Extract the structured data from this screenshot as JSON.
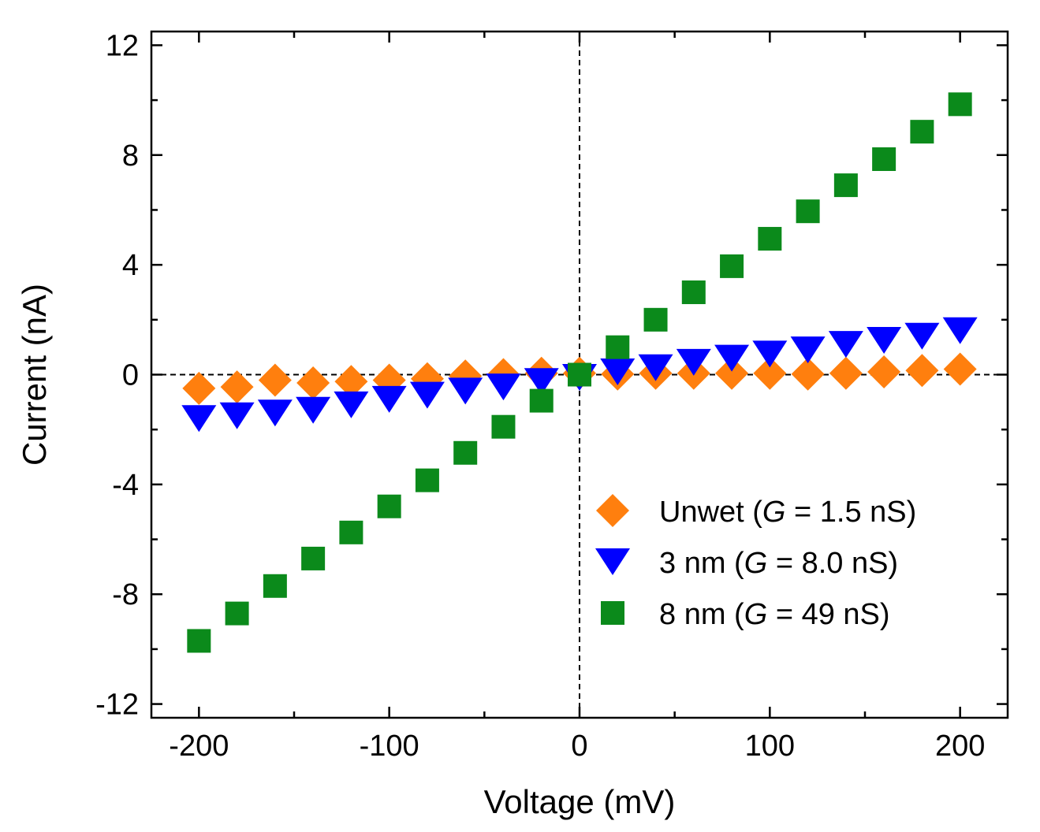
{
  "chart_data": {
    "type": "scatter",
    "xlabel": "Voltage (mV)",
    "ylabel": "Current (nA)",
    "xlim": [
      -225,
      225
    ],
    "ylim": [
      -12.5,
      12.5
    ],
    "x_ticks": [
      -200,
      -100,
      0,
      100,
      200
    ],
    "x_tick_labels": [
      "-200",
      "-100",
      "0",
      "100",
      "200"
    ],
    "y_ticks": [
      -12,
      -8,
      -4,
      0,
      4,
      8,
      12
    ],
    "y_tick_labels": [
      "-12",
      "-8",
      "-4",
      "0",
      "4",
      "8",
      "12"
    ],
    "x_minor_ticks": [
      -150,
      -50,
      50,
      150
    ],
    "y_minor_ticks": [
      -10,
      -6,
      -2,
      2,
      6,
      10
    ],
    "zero_lines": true,
    "legend_position": "bottom-right",
    "x": [
      -200,
      -180,
      -160,
      -140,
      -120,
      -100,
      -80,
      -60,
      -40,
      -20,
      0,
      20,
      40,
      60,
      80,
      100,
      120,
      140,
      160,
      180,
      200
    ],
    "series": [
      {
        "name": "Unwet",
        "label_prefix": "Unwet (",
        "g_symbol": "G",
        "g_value": " = 1.5 nS)",
        "marker": "diamond",
        "color": "#ff7f0e",
        "values": [
          -0.5,
          -0.45,
          -0.2,
          -0.3,
          -0.25,
          -0.2,
          -0.15,
          -0.05,
          0.0,
          0.05,
          0.05,
          0.02,
          0.05,
          0.05,
          0.05,
          0.05,
          0.02,
          0.05,
          0.1,
          0.15,
          0.2
        ]
      },
      {
        "name": "3 nm",
        "label_prefix": "3 nm   (",
        "g_symbol": "G",
        "g_value": " = 8.0 nS)",
        "marker": "triangle-down",
        "color": "#0000ff",
        "values": [
          -1.6,
          -1.5,
          -1.4,
          -1.3,
          -1.1,
          -0.9,
          -0.75,
          -0.6,
          -0.45,
          -0.25,
          -0.1,
          0.1,
          0.25,
          0.45,
          0.6,
          0.75,
          0.9,
          1.1,
          1.25,
          1.4,
          1.6
        ]
      },
      {
        "name": "8 nm",
        "label_prefix": "8 nm   (",
        "g_symbol": "G",
        "g_value": " = 49 nS)",
        "marker": "square",
        "color": "#0b8a1b",
        "values": [
          -9.7,
          -8.7,
          -7.7,
          -6.7,
          -5.75,
          -4.8,
          -3.85,
          -2.85,
          -1.9,
          -0.95,
          0.0,
          1.0,
          2.0,
          3.0,
          3.95,
          4.95,
          5.95,
          6.9,
          7.85,
          8.85,
          9.85
        ]
      }
    ]
  }
}
